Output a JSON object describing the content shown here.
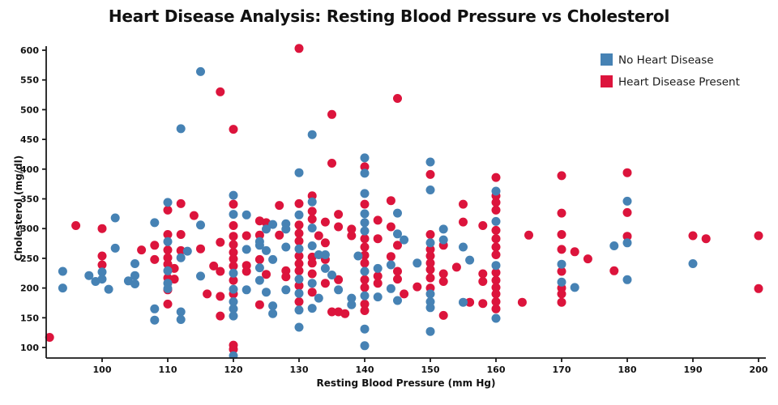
{
  "chart_data": {
    "type": "scatter",
    "title": "Heart Disease Analysis: Resting Blood Pressure vs Cholesterol",
    "xlabel": "Resting Blood Pressure (mm Hg)",
    "ylabel": "Cholesterol (mg/dl)",
    "xlim": [
      91.5,
      201.2
    ],
    "ylim": [
      82,
      607
    ],
    "x_ticks": [
      100,
      110,
      120,
      130,
      140,
      150,
      160,
      170,
      180,
      190,
      200
    ],
    "y_ticks": [
      100,
      150,
      200,
      250,
      300,
      350,
      400,
      450,
      500,
      550,
      600
    ],
    "grid": false,
    "legend_position": "upper right",
    "axis_color": "#1a1a1a",
    "series": [
      {
        "name": "Heart Disease Present",
        "color": "#DC143C",
        "points": [
          [
            92,
            117
          ],
          [
            96,
            305
          ],
          [
            100,
            300
          ],
          [
            100,
            254
          ],
          [
            100,
            239
          ],
          [
            106,
            264
          ],
          [
            108,
            272
          ],
          [
            108,
            248
          ],
          [
            110,
            331
          ],
          [
            110,
            290
          ],
          [
            110,
            264
          ],
          [
            110,
            251
          ],
          [
            110,
            240
          ],
          [
            110,
            217
          ],
          [
            110,
            197
          ],
          [
            110,
            173
          ],
          [
            112,
            342
          ],
          [
            112,
            290
          ],
          [
            112,
            263
          ],
          [
            111,
            233
          ],
          [
            111,
            215
          ],
          [
            114,
            322
          ],
          [
            115,
            266
          ],
          [
            116,
            190
          ],
          [
            118,
            530
          ],
          [
            118,
            277
          ],
          [
            117,
            237
          ],
          [
            118,
            228
          ],
          [
            118,
            186
          ],
          [
            118,
            153
          ],
          [
            120,
            467
          ],
          [
            120,
            341
          ],
          [
            120,
            305
          ],
          [
            120,
            287
          ],
          [
            120,
            273
          ],
          [
            120,
            260
          ],
          [
            120,
            249
          ],
          [
            120,
            237
          ],
          [
            120,
            213
          ],
          [
            120,
            190
          ],
          [
            120,
            104
          ],
          [
            120,
            97
          ],
          [
            122,
            288
          ],
          [
            122,
            238
          ],
          [
            122,
            228
          ],
          [
            124,
            313
          ],
          [
            125,
            310
          ],
          [
            124,
            289
          ],
          [
            124,
            248
          ],
          [
            125,
            223
          ],
          [
            124,
            172
          ],
          [
            127,
            339
          ],
          [
            127,
            289
          ],
          [
            128,
            229
          ],
          [
            128,
            219
          ],
          [
            130,
            603
          ],
          [
            130,
            342
          ],
          [
            130,
            306
          ],
          [
            130,
            292
          ],
          [
            130,
            279
          ],
          [
            130,
            254
          ],
          [
            130,
            241
          ],
          [
            130,
            229
          ],
          [
            130,
            204
          ],
          [
            130,
            177
          ],
          [
            132,
            355
          ],
          [
            132,
            329
          ],
          [
            132,
            316
          ],
          [
            133,
            288
          ],
          [
            132,
            252
          ],
          [
            132,
            242
          ],
          [
            132,
            224
          ],
          [
            132,
            193
          ],
          [
            134,
            311
          ],
          [
            134,
            276
          ],
          [
            134,
            248
          ],
          [
            134,
            208
          ],
          [
            135,
            492
          ],
          [
            135,
            410
          ],
          [
            136,
            324
          ],
          [
            136,
            303
          ],
          [
            136,
            214
          ],
          [
            135,
            160
          ],
          [
            136,
            160
          ],
          [
            137,
            157
          ],
          [
            138,
            299
          ],
          [
            138,
            288
          ],
          [
            140,
            404
          ],
          [
            140,
            341
          ],
          [
            140,
            283
          ],
          [
            140,
            269
          ],
          [
            140,
            255
          ],
          [
            140,
            242
          ],
          [
            140,
            214
          ],
          [
            140,
            201
          ],
          [
            140,
            173
          ],
          [
            140,
            162
          ],
          [
            142,
            314
          ],
          [
            142,
            283
          ],
          [
            142,
            220
          ],
          [
            142,
            208
          ],
          [
            144,
            347
          ],
          [
            144,
            303
          ],
          [
            144,
            253
          ],
          [
            145,
            519
          ],
          [
            145,
            272
          ],
          [
            145,
            228
          ],
          [
            145,
            215
          ],
          [
            146,
            190
          ],
          [
            148,
            202
          ],
          [
            150,
            391
          ],
          [
            150,
            290
          ],
          [
            150,
            265
          ],
          [
            150,
            254
          ],
          [
            150,
            242
          ],
          [
            150,
            231
          ],
          [
            150,
            217
          ],
          [
            150,
            200
          ],
          [
            152,
            272
          ],
          [
            152,
            224
          ],
          [
            152,
            211
          ],
          [
            152,
            154
          ],
          [
            154,
            235
          ],
          [
            155,
            341
          ],
          [
            155,
            311
          ],
          [
            156,
            176
          ],
          [
            158,
            174
          ],
          [
            158,
            305
          ],
          [
            158,
            224
          ],
          [
            158,
            211
          ],
          [
            160,
            386
          ],
          [
            160,
            355
          ],
          [
            160,
            344
          ],
          [
            160,
            331
          ],
          [
            160,
            297
          ],
          [
            160,
            283
          ],
          [
            160,
            269
          ],
          [
            160,
            256
          ],
          [
            160,
            226
          ],
          [
            160,
            213
          ],
          [
            160,
            201
          ],
          [
            160,
            190
          ],
          [
            160,
            177
          ],
          [
            160,
            165
          ],
          [
            165,
            289
          ],
          [
            164,
            176
          ],
          [
            170,
            389
          ],
          [
            170,
            326
          ],
          [
            170,
            290
          ],
          [
            170,
            265
          ],
          [
            170,
            228
          ],
          [
            170,
            200
          ],
          [
            170,
            190
          ],
          [
            170,
            176
          ],
          [
            172,
            261
          ],
          [
            174,
            249
          ],
          [
            178,
            229
          ],
          [
            180,
            394
          ],
          [
            180,
            327
          ],
          [
            180,
            287
          ],
          [
            190,
            288
          ],
          [
            192,
            283
          ],
          [
            200,
            288
          ],
          [
            200,
            199
          ]
        ]
      },
      {
        "name": "No Heart Disease",
        "color": "#4682B4",
        "points": [
          [
            115,
            564
          ],
          [
            112,
            468
          ],
          [
            132,
            458
          ],
          [
            140,
            419
          ],
          [
            130,
            394
          ],
          [
            140,
            393
          ],
          [
            150,
            412
          ],
          [
            120,
            356
          ],
          [
            140,
            359
          ],
          [
            150,
            365
          ],
          [
            160,
            363
          ],
          [
            180,
            346
          ],
          [
            145,
            326
          ],
          [
            94,
            228
          ],
          [
            94,
            200
          ],
          [
            98,
            221
          ],
          [
            99,
            211
          ],
          [
            100,
            227
          ],
          [
            100,
            215
          ],
          [
            101,
            198
          ],
          [
            102,
            318
          ],
          [
            102,
            267
          ],
          [
            104,
            212
          ],
          [
            105,
            207
          ],
          [
            105,
            241
          ],
          [
            105,
            221
          ],
          [
            108,
            310
          ],
          [
            108,
            165
          ],
          [
            108,
            146
          ],
          [
            110,
            344
          ],
          [
            110,
            278
          ],
          [
            110,
            229
          ],
          [
            110,
            208
          ],
          [
            110,
            199
          ],
          [
            112,
            251
          ],
          [
            112,
            160
          ],
          [
            112,
            147
          ],
          [
            113,
            262
          ],
          [
            115,
            306
          ],
          [
            115,
            220
          ],
          [
            120,
            324
          ],
          [
            120,
            225
          ],
          [
            120,
            198
          ],
          [
            120,
            177
          ],
          [
            120,
            165
          ],
          [
            120,
            153
          ],
          [
            120,
            86
          ],
          [
            122,
            323
          ],
          [
            122,
            265
          ],
          [
            122,
            197
          ],
          [
            124,
            278
          ],
          [
            124,
            272
          ],
          [
            124,
            234
          ],
          [
            124,
            213
          ],
          [
            125,
            299
          ],
          [
            125,
            263
          ],
          [
            125,
            193
          ],
          [
            126,
            307
          ],
          [
            126,
            248
          ],
          [
            126,
            170
          ],
          [
            126,
            157
          ],
          [
            128,
            308
          ],
          [
            128,
            299
          ],
          [
            128,
            269
          ],
          [
            128,
            197
          ],
          [
            130,
            323
          ],
          [
            130,
            266
          ],
          [
            130,
            215
          ],
          [
            130,
            191
          ],
          [
            130,
            163
          ],
          [
            130,
            134
          ],
          [
            132,
            345
          ],
          [
            132,
            301
          ],
          [
            132,
            271
          ],
          [
            132,
            208
          ],
          [
            132,
            166
          ],
          [
            133,
            183
          ],
          [
            133,
            256
          ],
          [
            134,
            256
          ],
          [
            134,
            233
          ],
          [
            135,
            222
          ],
          [
            136,
            197
          ],
          [
            138,
            183
          ],
          [
            138,
            172
          ],
          [
            139,
            254
          ],
          [
            140,
            325
          ],
          [
            140,
            310
          ],
          [
            140,
            296
          ],
          [
            140,
            228
          ],
          [
            140,
            187
          ],
          [
            140,
            131
          ],
          [
            140,
            103
          ],
          [
            142,
            233
          ],
          [
            142,
            185
          ],
          [
            144,
            239
          ],
          [
            144,
            199
          ],
          [
            145,
            291
          ],
          [
            145,
            179
          ],
          [
            146,
            281
          ],
          [
            148,
            242
          ],
          [
            150,
            276
          ],
          [
            150,
            190
          ],
          [
            150,
            177
          ],
          [
            150,
            167
          ],
          [
            150,
            127
          ],
          [
            152,
            299
          ],
          [
            152,
            281
          ],
          [
            155,
            269
          ],
          [
            156,
            247
          ],
          [
            155,
            176
          ],
          [
            160,
            312
          ],
          [
            160,
            238
          ],
          [
            160,
            149
          ],
          [
            170,
            240
          ],
          [
            170,
            210
          ],
          [
            172,
            201
          ],
          [
            178,
            271
          ],
          [
            180,
            276
          ],
          [
            180,
            214
          ],
          [
            190,
            241
          ]
        ]
      }
    ],
    "legend": [
      {
        "label": "No Heart Disease",
        "color": "#4682B4"
      },
      {
        "label": "Heart Disease Present",
        "color": "#DC143C"
      }
    ]
  }
}
